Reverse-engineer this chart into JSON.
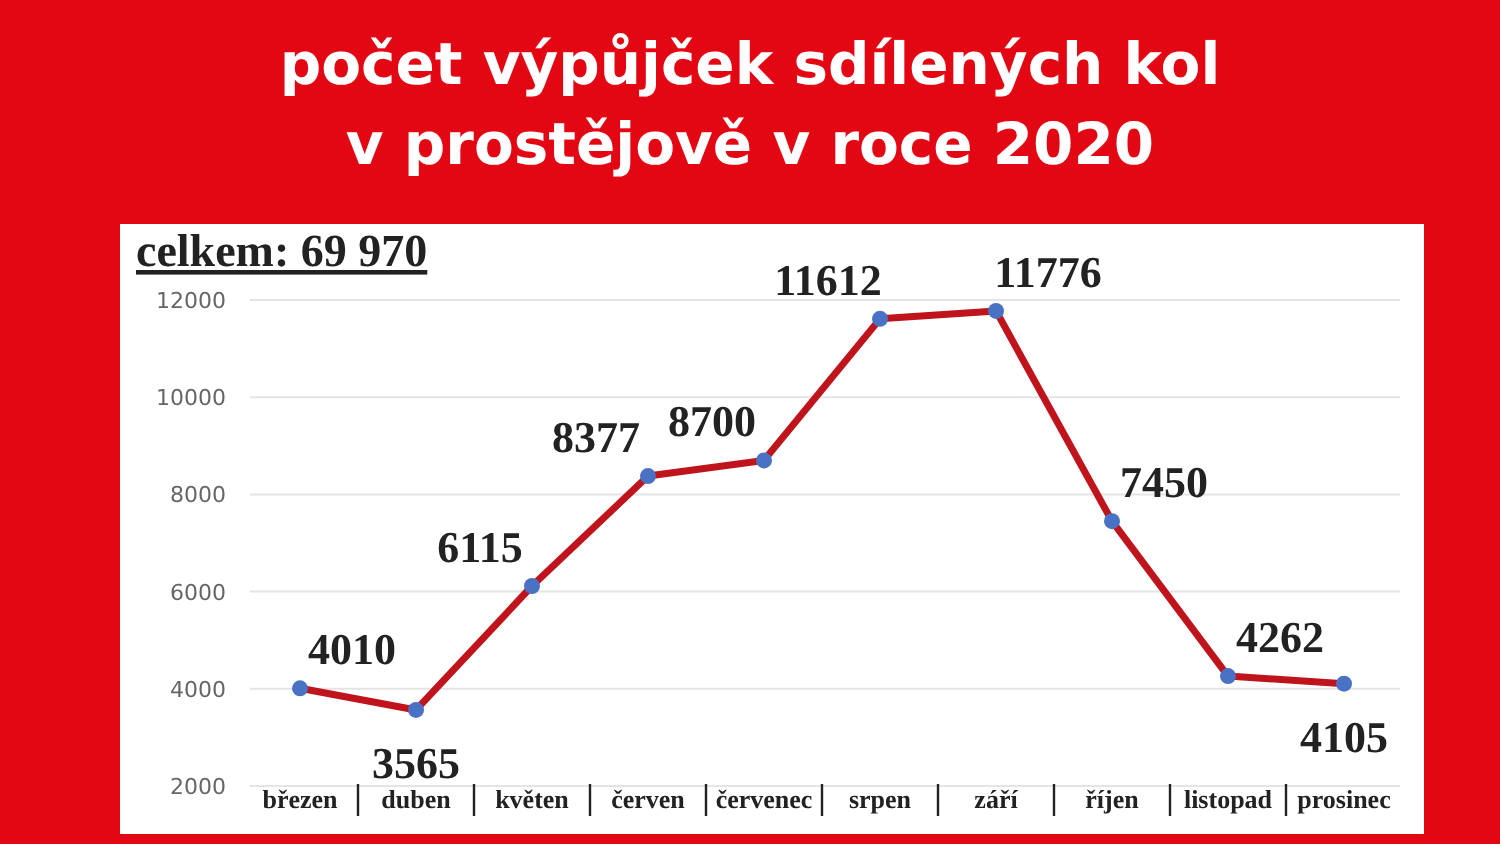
{
  "chart_data": {
    "type": "line",
    "title": "počet výpůjček sdílených kol\nv prostějově v roce 2020",
    "categories": [
      "březen",
      "duben",
      "květen",
      "červen",
      "červenec",
      "srpen",
      "září",
      "říjen",
      "listopad",
      "prosinec"
    ],
    "series": [
      {
        "color": "#c0141c",
        "values": [
          4010,
          3565,
          6115,
          8377,
          8700,
          11612,
          11776,
          7450,
          4262,
          4105
        ]
      }
    ],
    "ylim": [
      2000,
      12000
    ],
    "yticks": [
      2000,
      4000,
      6000,
      8000,
      10000,
      12000
    ],
    "grid": "y",
    "marker": "circle",
    "line_style": "solid",
    "data_labels": true,
    "annotations": [
      "celkem: 69 970"
    ]
  }
}
